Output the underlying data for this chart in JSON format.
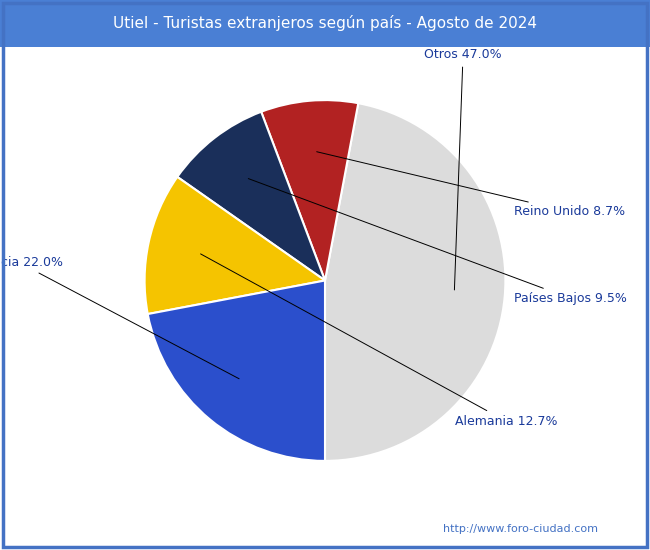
{
  "title": "Utiel - Turistas extranjeros según país - Agosto de 2024",
  "title_bg_color": "#4a7fd4",
  "title_text_color": "#ffffff",
  "labels": [
    "Otros",
    "Reino Unido",
    "Países Bajos",
    "Alemania",
    "Francia"
  ],
  "values": [
    47.0,
    8.7,
    9.5,
    12.7,
    22.0
  ],
  "colors": [
    "#dcdcdc",
    "#b22222",
    "#1a2f5a",
    "#f5c400",
    "#2b4fcc"
  ],
  "label_color": "#1a3a9a",
  "label_fontsize": 9,
  "watermark": "http://www.foro-ciudad.com",
  "watermark_color": "#4472c4",
  "watermark_fontsize": 8,
  "startangle": 180,
  "bg_color": "#ffffff",
  "border_color": "#4472c4",
  "border_linewidth": 2.5
}
